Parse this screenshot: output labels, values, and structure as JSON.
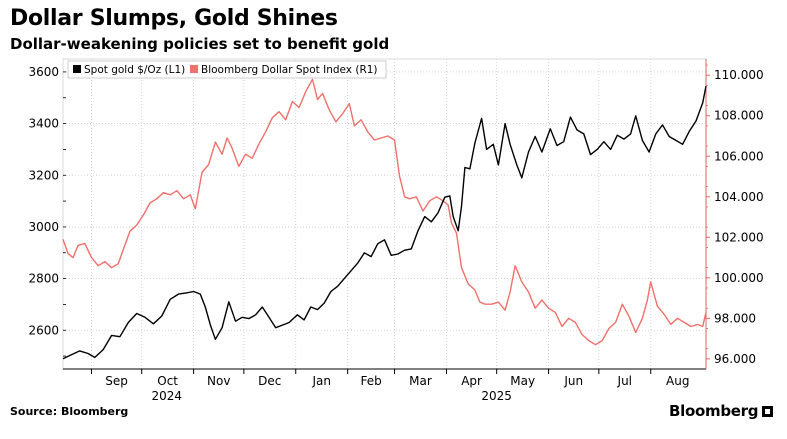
{
  "header": {
    "title": "Dollar Slumps, Gold Shines",
    "subtitle": "Dollar-weakening policies set to benefit gold"
  },
  "footer": {
    "source": "Source: Bloomberg",
    "brand": "Bloomberg"
  },
  "colors": {
    "gold": "#000000",
    "dollar": "#f0706b",
    "grid": "#cccccc",
    "axis_right": "#e8625d"
  },
  "chart_data": {
    "type": "line",
    "title": "Dollar Slumps, Gold Shines",
    "subtitle": "Dollar-weakening policies set to benefit gold",
    "x_range": [
      "2024-08-15",
      "2025-09-03"
    ],
    "x_ticks": [
      {
        "label": "Sep",
        "date": "2024-09-01"
      },
      {
        "label": "Oct",
        "date": "2024-10-01"
      },
      {
        "label": "Nov",
        "date": "2024-11-01"
      },
      {
        "label": "Dec",
        "date": "2024-12-01"
      },
      {
        "label": "Jan",
        "date": "2025-01-01"
      },
      {
        "label": "Feb",
        "date": "2025-02-01"
      },
      {
        "label": "Mar",
        "date": "2025-03-01"
      },
      {
        "label": "Apr",
        "date": "2025-04-01"
      },
      {
        "label": "May",
        "date": "2025-05-01"
      },
      {
        "label": "Jun",
        "date": "2025-06-01"
      },
      {
        "label": "Jul",
        "date": "2025-07-01"
      },
      {
        "label": "Aug",
        "date": "2025-08-01"
      }
    ],
    "year_labels": [
      {
        "label": "2024",
        "date": "2024-10-16"
      },
      {
        "label": "2025",
        "date": "2025-05-01"
      }
    ],
    "y_left": {
      "min": 2450,
      "max": 3650,
      "ticks": [
        2600,
        2800,
        3000,
        3200,
        3400,
        3600
      ]
    },
    "y_right": {
      "min": 95.5,
      "max": 110.8,
      "ticks": [
        "96.000",
        "98.000",
        "100.000",
        "102.000",
        "104.000",
        "106.000",
        "108.000",
        "110.000"
      ]
    },
    "grid": true,
    "legend": {
      "placement": "top-left"
    },
    "series": [
      {
        "name": "Spot gold $/Oz (L1)",
        "axis": "left",
        "points": [
          [
            "2024-08-15",
            2490
          ],
          [
            "2024-08-20",
            2505
          ],
          [
            "2024-08-25",
            2520
          ],
          [
            "2024-08-30",
            2510
          ],
          [
            "2024-09-03",
            2495
          ],
          [
            "2024-09-08",
            2525
          ],
          [
            "2024-09-13",
            2580
          ],
          [
            "2024-09-18",
            2575
          ],
          [
            "2024-09-23",
            2630
          ],
          [
            "2024-09-28",
            2665
          ],
          [
            "2024-10-03",
            2650
          ],
          [
            "2024-10-08",
            2625
          ],
          [
            "2024-10-13",
            2655
          ],
          [
            "2024-10-18",
            2720
          ],
          [
            "2024-10-23",
            2740
          ],
          [
            "2024-10-28",
            2745
          ],
          [
            "2024-11-01",
            2750
          ],
          [
            "2024-11-05",
            2740
          ],
          [
            "2024-11-08",
            2690
          ],
          [
            "2024-11-11",
            2620
          ],
          [
            "2024-11-14",
            2565
          ],
          [
            "2024-11-18",
            2610
          ],
          [
            "2024-11-22",
            2710
          ],
          [
            "2024-11-26",
            2635
          ],
          [
            "2024-11-30",
            2650
          ],
          [
            "2024-12-04",
            2645
          ],
          [
            "2024-12-08",
            2660
          ],
          [
            "2024-12-12",
            2690
          ],
          [
            "2024-12-16",
            2650
          ],
          [
            "2024-12-20",
            2610
          ],
          [
            "2024-12-24",
            2620
          ],
          [
            "2024-12-28",
            2630
          ],
          [
            "2025-01-02",
            2660
          ],
          [
            "2025-01-06",
            2640
          ],
          [
            "2025-01-10",
            2690
          ],
          [
            "2025-01-14",
            2680
          ],
          [
            "2025-01-18",
            2705
          ],
          [
            "2025-01-22",
            2750
          ],
          [
            "2025-01-26",
            2770
          ],
          [
            "2025-01-30",
            2800
          ],
          [
            "2025-02-03",
            2830
          ],
          [
            "2025-02-07",
            2860
          ],
          [
            "2025-02-11",
            2900
          ],
          [
            "2025-02-15",
            2885
          ],
          [
            "2025-02-19",
            2935
          ],
          [
            "2025-02-23",
            2950
          ],
          [
            "2025-02-27",
            2890
          ],
          [
            "2025-03-03",
            2895
          ],
          [
            "2025-03-07",
            2910
          ],
          [
            "2025-03-11",
            2915
          ],
          [
            "2025-03-15",
            2985
          ],
          [
            "2025-03-19",
            3040
          ],
          [
            "2025-03-23",
            3020
          ],
          [
            "2025-03-27",
            3055
          ],
          [
            "2025-03-31",
            3115
          ],
          [
            "2025-04-03",
            3120
          ],
          [
            "2025-04-05",
            3040
          ],
          [
            "2025-04-08",
            2985
          ],
          [
            "2025-04-10",
            3080
          ],
          [
            "2025-04-12",
            3230
          ],
          [
            "2025-04-15",
            3225
          ],
          [
            "2025-04-18",
            3325
          ],
          [
            "2025-04-22",
            3420
          ],
          [
            "2025-04-25",
            3300
          ],
          [
            "2025-04-29",
            3320
          ],
          [
            "2025-05-02",
            3240
          ],
          [
            "2025-05-06",
            3400
          ],
          [
            "2025-05-09",
            3320
          ],
          [
            "2025-05-13",
            3240
          ],
          [
            "2025-05-16",
            3190
          ],
          [
            "2025-05-20",
            3290
          ],
          [
            "2025-05-24",
            3350
          ],
          [
            "2025-05-28",
            3290
          ],
          [
            "2025-06-02",
            3380
          ],
          [
            "2025-06-06",
            3315
          ],
          [
            "2025-06-10",
            3330
          ],
          [
            "2025-06-14",
            3425
          ],
          [
            "2025-06-18",
            3375
          ],
          [
            "2025-06-22",
            3360
          ],
          [
            "2025-06-26",
            3280
          ],
          [
            "2025-06-30",
            3300
          ],
          [
            "2025-07-04",
            3330
          ],
          [
            "2025-07-08",
            3300
          ],
          [
            "2025-07-12",
            3355
          ],
          [
            "2025-07-16",
            3340
          ],
          [
            "2025-07-20",
            3360
          ],
          [
            "2025-07-23",
            3430
          ],
          [
            "2025-07-27",
            3335
          ],
          [
            "2025-07-31",
            3290
          ],
          [
            "2025-08-04",
            3360
          ],
          [
            "2025-08-08",
            3395
          ],
          [
            "2025-08-12",
            3350
          ],
          [
            "2025-08-16",
            3335
          ],
          [
            "2025-08-20",
            3320
          ],
          [
            "2025-08-24",
            3370
          ],
          [
            "2025-08-28",
            3410
          ],
          [
            "2025-09-01",
            3480
          ],
          [
            "2025-09-03",
            3545
          ]
        ]
      },
      {
        "name": "Bloomberg Dollar Spot Index (R1)",
        "axis": "right",
        "points": [
          [
            "2024-08-15",
            101.9
          ],
          [
            "2024-08-18",
            101.2
          ],
          [
            "2024-08-21",
            101.0
          ],
          [
            "2024-08-24",
            101.6
          ],
          [
            "2024-08-28",
            101.7
          ],
          [
            "2024-09-01",
            101.0
          ],
          [
            "2024-09-05",
            100.6
          ],
          [
            "2024-09-09",
            100.8
          ],
          [
            "2024-09-13",
            100.5
          ],
          [
            "2024-09-17",
            100.7
          ],
          [
            "2024-09-20",
            101.4
          ],
          [
            "2024-09-24",
            102.3
          ],
          [
            "2024-09-28",
            102.6
          ],
          [
            "2024-10-02",
            103.1
          ],
          [
            "2024-10-06",
            103.7
          ],
          [
            "2024-10-10",
            103.9
          ],
          [
            "2024-10-14",
            104.2
          ],
          [
            "2024-10-18",
            104.1
          ],
          [
            "2024-10-22",
            104.3
          ],
          [
            "2024-10-26",
            103.9
          ],
          [
            "2024-10-30",
            104.1
          ],
          [
            "2024-11-02",
            103.4
          ],
          [
            "2024-11-06",
            105.2
          ],
          [
            "2024-11-10",
            105.6
          ],
          [
            "2024-11-14",
            106.7
          ],
          [
            "2024-11-18",
            106.1
          ],
          [
            "2024-11-21",
            106.9
          ],
          [
            "2024-11-24",
            106.4
          ],
          [
            "2024-11-28",
            105.5
          ],
          [
            "2024-12-02",
            106.1
          ],
          [
            "2024-12-06",
            105.9
          ],
          [
            "2024-12-10",
            106.6
          ],
          [
            "2024-12-14",
            107.2
          ],
          [
            "2024-12-18",
            107.9
          ],
          [
            "2024-12-22",
            108.2
          ],
          [
            "2024-12-26",
            107.8
          ],
          [
            "2024-12-30",
            108.7
          ],
          [
            "2025-01-03",
            108.4
          ],
          [
            "2025-01-07",
            109.2
          ],
          [
            "2025-01-11",
            109.8
          ],
          [
            "2025-01-14",
            108.8
          ],
          [
            "2025-01-17",
            109.1
          ],
          [
            "2025-01-21",
            108.3
          ],
          [
            "2025-01-25",
            107.7
          ],
          [
            "2025-01-29",
            108.1
          ],
          [
            "2025-02-02",
            108.6
          ],
          [
            "2025-02-05",
            107.5
          ],
          [
            "2025-02-09",
            107.8
          ],
          [
            "2025-02-13",
            107.2
          ],
          [
            "2025-02-17",
            106.8
          ],
          [
            "2025-02-21",
            106.9
          ],
          [
            "2025-02-25",
            107.0
          ],
          [
            "2025-03-01",
            106.8
          ],
          [
            "2025-03-04",
            105.0
          ],
          [
            "2025-03-07",
            104.0
          ],
          [
            "2025-03-10",
            103.9
          ],
          [
            "2025-03-14",
            104.0
          ],
          [
            "2025-03-18",
            103.3
          ],
          [
            "2025-03-22",
            103.8
          ],
          [
            "2025-03-26",
            104.0
          ],
          [
            "2025-03-30",
            103.8
          ],
          [
            "2025-04-02",
            103.6
          ],
          [
            "2025-04-04",
            102.7
          ],
          [
            "2025-04-07",
            102.2
          ],
          [
            "2025-04-10",
            100.5
          ],
          [
            "2025-04-14",
            99.7
          ],
          [
            "2025-04-18",
            99.4
          ],
          [
            "2025-04-21",
            98.8
          ],
          [
            "2025-04-24",
            98.7
          ],
          [
            "2025-04-28",
            98.7
          ],
          [
            "2025-05-02",
            98.8
          ],
          [
            "2025-05-06",
            98.4
          ],
          [
            "2025-05-09",
            99.3
          ],
          [
            "2025-05-12",
            100.6
          ],
          [
            "2025-05-16",
            99.8
          ],
          [
            "2025-05-20",
            99.3
          ],
          [
            "2025-05-24",
            98.5
          ],
          [
            "2025-05-28",
            98.9
          ],
          [
            "2025-06-01",
            98.5
          ],
          [
            "2025-06-05",
            98.3
          ],
          [
            "2025-06-09",
            97.6
          ],
          [
            "2025-06-13",
            98.0
          ],
          [
            "2025-06-17",
            97.8
          ],
          [
            "2025-06-21",
            97.2
          ],
          [
            "2025-06-25",
            96.9
          ],
          [
            "2025-06-29",
            96.7
          ],
          [
            "2025-07-03",
            96.9
          ],
          [
            "2025-07-07",
            97.5
          ],
          [
            "2025-07-11",
            97.8
          ],
          [
            "2025-07-15",
            98.7
          ],
          [
            "2025-07-19",
            98.1
          ],
          [
            "2025-07-23",
            97.3
          ],
          [
            "2025-07-27",
            98.0
          ],
          [
            "2025-07-30",
            98.9
          ],
          [
            "2025-08-01",
            99.8
          ],
          [
            "2025-08-05",
            98.6
          ],
          [
            "2025-08-09",
            98.2
          ],
          [
            "2025-08-13",
            97.7
          ],
          [
            "2025-08-17",
            98.0
          ],
          [
            "2025-08-21",
            97.8
          ],
          [
            "2025-08-25",
            97.6
          ],
          [
            "2025-08-29",
            97.7
          ],
          [
            "2025-09-01",
            97.6
          ],
          [
            "2025-09-03",
            98.3
          ]
        ]
      }
    ]
  }
}
